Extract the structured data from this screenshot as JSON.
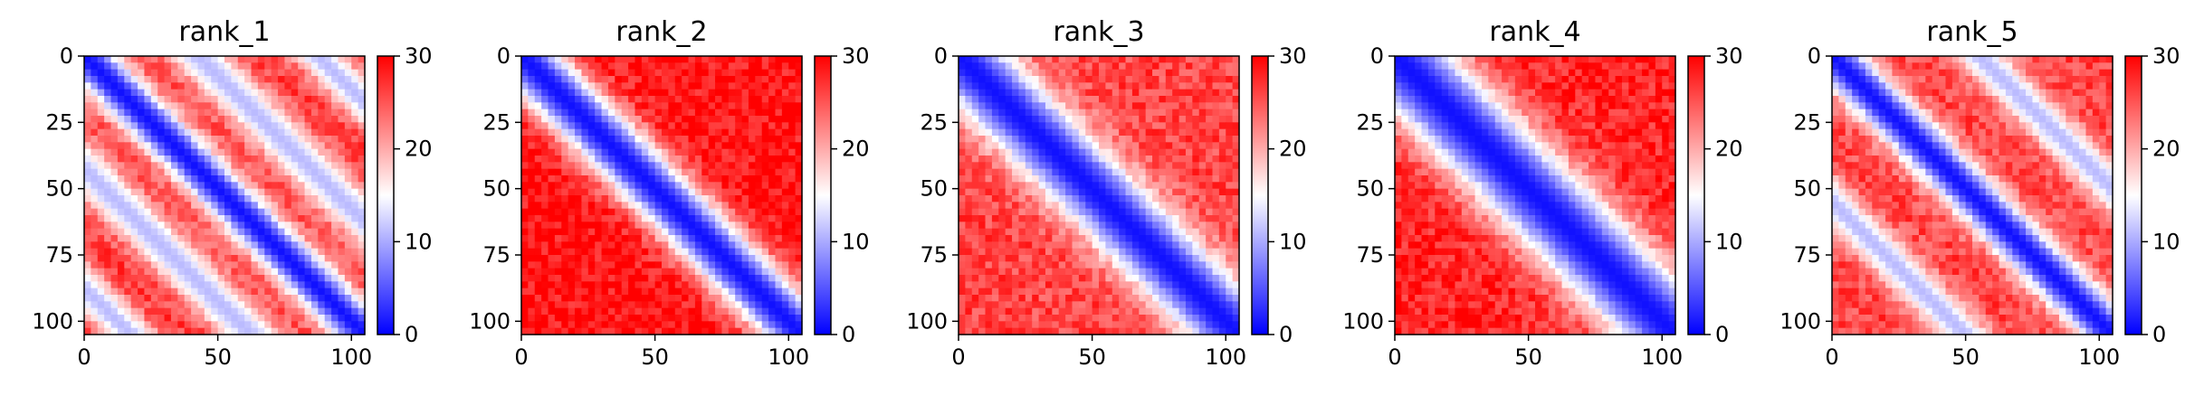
{
  "chart_data": [
    {
      "type": "heatmap",
      "title": "rank_1",
      "xlabel": "",
      "ylabel": "",
      "xlim": [
        0,
        105
      ],
      "ylim": [
        105,
        0
      ],
      "x_ticks": [
        0,
        50,
        100
      ],
      "y_ticks": [
        0,
        25,
        50,
        75,
        100
      ],
      "colorbar": {
        "ticks": [
          0,
          10,
          20,
          30
        ],
        "range": [
          0,
          30
        ],
        "colormap": "bwr"
      },
      "pattern": {
        "diagonal_bands": [
          {
            "offset": 0,
            "width": 3.5
          },
          {
            "offset": 17,
            "width": 3.5
          },
          {
            "offset": 35,
            "width": 3.0
          }
        ],
        "background": 27,
        "band_min": 1
      }
    },
    {
      "type": "heatmap",
      "title": "rank_2",
      "xlabel": "",
      "ylabel": "",
      "xlim": [
        0,
        105
      ],
      "ylim": [
        105,
        0
      ],
      "x_ticks": [
        0,
        50,
        100
      ],
      "y_ticks": [
        0,
        25,
        50,
        75,
        100
      ],
      "colorbar": {
        "ticks": [
          0,
          10,
          20,
          30
        ],
        "range": [
          0,
          30
        ],
        "colormap": "bwr"
      },
      "pattern": {
        "diagonal_bands": [
          {
            "offset": 0,
            "width": 4.5
          }
        ],
        "background": 29,
        "band_min": 1
      }
    },
    {
      "type": "heatmap",
      "title": "rank_3",
      "xlabel": "",
      "ylabel": "",
      "xlim": [
        0,
        105
      ],
      "ylim": [
        105,
        0
      ],
      "x_ticks": [
        0,
        50,
        100
      ],
      "y_ticks": [
        0,
        25,
        50,
        75,
        100
      ],
      "colorbar": {
        "ticks": [
          0,
          10,
          20,
          30
        ],
        "range": [
          0,
          30
        ],
        "colormap": "bwr"
      },
      "pattern": {
        "diagonal_bands": [
          {
            "offset": 0,
            "width": 5.5
          }
        ],
        "background": 26,
        "band_min": 1
      }
    },
    {
      "type": "heatmap",
      "title": "rank_4",
      "xlabel": "",
      "ylabel": "",
      "xlim": [
        0,
        105
      ],
      "ylim": [
        105,
        0
      ],
      "x_ticks": [
        0,
        50,
        100
      ],
      "y_ticks": [
        0,
        25,
        50,
        75,
        100
      ],
      "colorbar": {
        "ticks": [
          0,
          10,
          20,
          30
        ],
        "range": [
          0,
          30
        ],
        "colormap": "bwr"
      },
      "pattern": {
        "diagonal_bands": [
          {
            "offset": 0,
            "width": 6.5
          }
        ],
        "background": 28,
        "band_min": 1
      }
    },
    {
      "type": "heatmap",
      "title": "rank_5",
      "xlabel": "",
      "ylabel": "",
      "xlim": [
        0,
        105
      ],
      "ylim": [
        105,
        0
      ],
      "x_ticks": [
        0,
        50,
        100
      ],
      "y_ticks": [
        0,
        25,
        50,
        75,
        100
      ],
      "colorbar": {
        "ticks": [
          0,
          10,
          20,
          30
        ],
        "range": [
          0,
          30
        ],
        "colormap": "bwr"
      },
      "pattern": {
        "diagonal_bands": [
          {
            "offset": 0,
            "width": 3.5
          },
          {
            "offset": 22,
            "width": 3.0
          }
        ],
        "background": 26,
        "band_min": 1
      }
    }
  ]
}
